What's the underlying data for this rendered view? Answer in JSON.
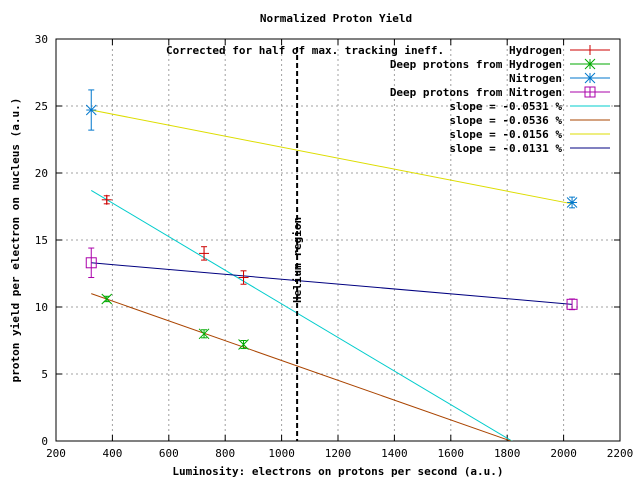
{
  "chart_data": {
    "type": "scatter",
    "title": "Normalized Proton Yield",
    "xlabel": "Luminosity: electrons on protons per second (a.u.)",
    "ylabel": "proton yield per electron on nucleus (a.u.)",
    "xlim": [
      200,
      2200
    ],
    "ylim": [
      0,
      30
    ],
    "x_ticks": [
      200,
      400,
      600,
      800,
      1000,
      1200,
      1400,
      1600,
      1800,
      2000,
      2200
    ],
    "y_ticks": [
      0,
      5,
      10,
      15,
      20,
      25,
      30
    ],
    "grid": true,
    "legend_position": "top-right",
    "annotations": {
      "corrected": "Corrected for half of max. tracking ineff.",
      "helium": "Helium region",
      "helium_x": 1055
    },
    "series": [
      {
        "name": "Hydrogen",
        "marker": "plus",
        "color": "#cc0000",
        "points": [
          {
            "x": 380,
            "y": 18.0,
            "err": 0.3
          },
          {
            "x": 725,
            "y": 14.0,
            "err": 0.5
          },
          {
            "x": 865,
            "y": 12.2,
            "err": 0.5
          }
        ]
      },
      {
        "name": "Deep protons from Hydrogen",
        "marker": "cross",
        "color": "#00aa00",
        "points": [
          {
            "x": 380,
            "y": 10.6,
            "err": 0.2
          },
          {
            "x": 725,
            "y": 8.0,
            "err": 0.3
          },
          {
            "x": 865,
            "y": 7.2,
            "err": 0.3
          }
        ]
      },
      {
        "name": "Nitrogen",
        "marker": "star",
        "color": "#0077cc",
        "points": [
          {
            "x": 325,
            "y": 24.7,
            "err": 1.5
          },
          {
            "x": 2030,
            "y": 17.8,
            "err": 0.4
          }
        ]
      },
      {
        "name": "Deep protons from Nitrogen",
        "marker": "square",
        "color": "#aa00aa",
        "points": [
          {
            "x": 325,
            "y": 13.3,
            "err": 1.1
          },
          {
            "x": 2030,
            "y": 10.2,
            "err": 0.4
          }
        ]
      }
    ],
    "fits": [
      {
        "name": "slope = -0.0531 %",
        "color": "#00cccc",
        "x": [
          325,
          1880
        ],
        "y": [
          18.7,
          -0.8
        ]
      },
      {
        "name": "slope = -0.0536 %",
        "color": "#aa4400",
        "x": [
          325,
          1880
        ],
        "y": [
          11.0,
          -0.5
        ]
      },
      {
        "name": "slope = -0.0156 %",
        "color": "#dddd00",
        "x": [
          325,
          2030
        ],
        "y": [
          24.7,
          17.7
        ]
      },
      {
        "name": "slope = -0.0131 %",
        "color": "#000080",
        "x": [
          325,
          2030
        ],
        "y": [
          13.3,
          10.2
        ]
      }
    ]
  }
}
